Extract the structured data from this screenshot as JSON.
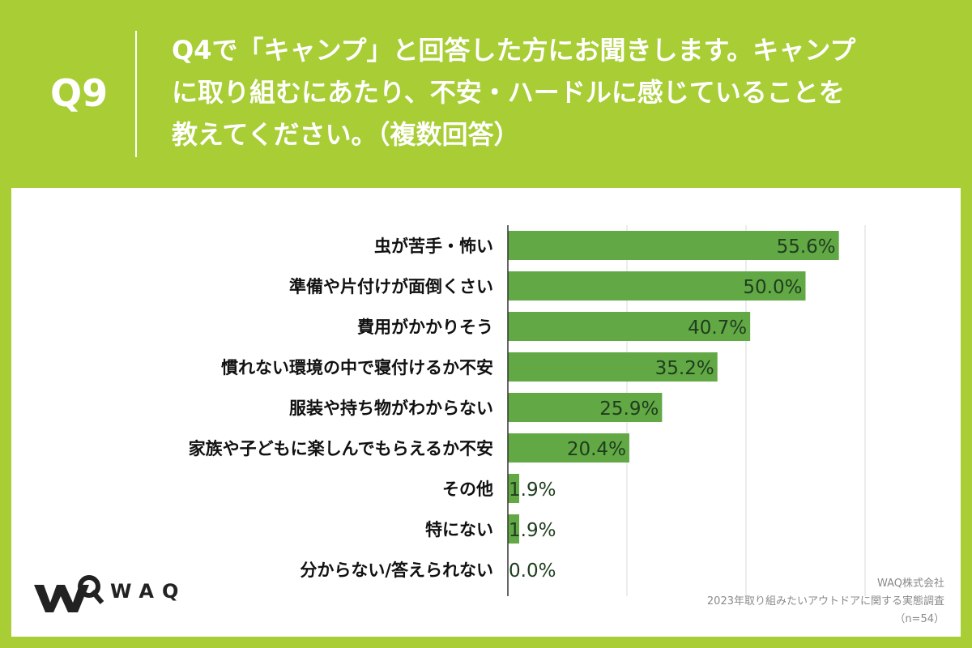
{
  "header": {
    "qnum": "Q9",
    "question_lines": [
      "Q4で「キャンプ」と回答した方にお聞きします。キャンプ",
      "に取り組むにあたり、不安・ハードルに感じていることを",
      "教えてください。（複数回答）"
    ]
  },
  "logo": {
    "text": "WAQ"
  },
  "source": {
    "company": "WAQ株式会社",
    "survey": "2023年取り組みたいアウトドアに関する実態調査",
    "n": "（n=54）"
  },
  "colors": {
    "background": "#a8cd35",
    "bar": "#62a845",
    "value_text": "#1f3d1f"
  },
  "chart_data": {
    "type": "bar",
    "orientation": "horizontal",
    "title": "",
    "xlabel": "",
    "ylabel": "",
    "xlim": [
      0,
      100
    ],
    "grid": true,
    "unit": "%",
    "categories": [
      "虫が苦手・怖い",
      "準備や片付けが面倒くさい",
      "費用がかかりそう",
      "慣れない環境の中で寝付けるか不安",
      "服装や持ち物がわからない",
      "家族や子どもに楽しんでもらえるか不安",
      "その他",
      "特にない",
      "分からない/答えられない"
    ],
    "values": [
      55.6,
      50.0,
      40.7,
      35.2,
      25.9,
      20.4,
      1.9,
      1.9,
      0.0
    ],
    "value_labels": [
      "55.6%",
      "50.0%",
      "40.7%",
      "35.2%",
      "25.9%",
      "20.4%",
      "1.9%",
      "1.9%",
      "0.0%"
    ]
  }
}
